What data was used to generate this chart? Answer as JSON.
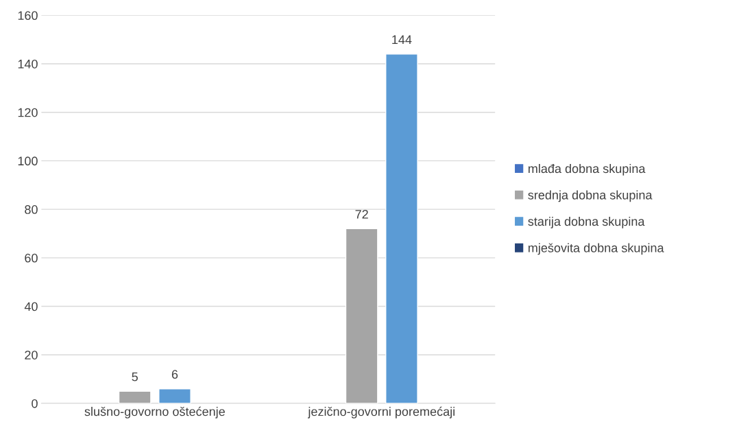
{
  "chart_data": {
    "type": "bar",
    "categories": [
      "slušno-govorno oštećenje",
      "jezično-govorni poremećaji"
    ],
    "series": [
      {
        "name": "mlađa dobna skupina",
        "color": "#4472c4",
        "values": [
          null,
          null
        ]
      },
      {
        "name": "srednja dobna skupina",
        "color": "#a5a5a5",
        "values": [
          5,
          72
        ]
      },
      {
        "name": "starija dobna skupina",
        "color": "#5b9bd5",
        "values": [
          6,
          144
        ]
      },
      {
        "name": "mješovita dobna skupina",
        "color": "#264478",
        "values": [
          null,
          null
        ]
      }
    ],
    "ylim": [
      0,
      160
    ],
    "yticks": [
      0,
      20,
      40,
      60,
      80,
      100,
      120,
      140,
      160
    ],
    "grid": "y",
    "legend": "right",
    "data_labels": true
  }
}
